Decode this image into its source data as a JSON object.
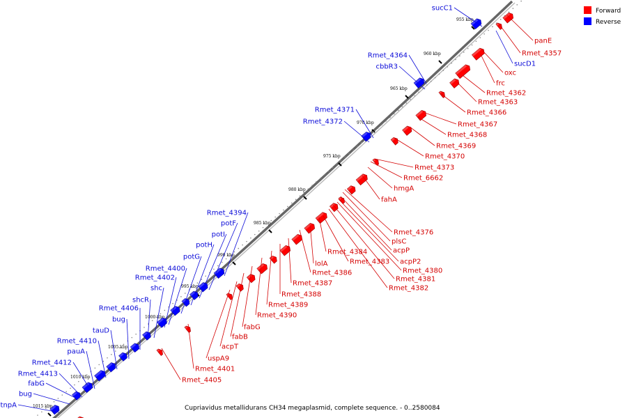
{
  "caption": "Cupriavidus metallidurans CH34 megaplasmid, complete sequence. - 0..2580084",
  "legend": [
    {
      "label": "Forward",
      "color": "#ff0000"
    },
    {
      "label": "Reverse",
      "color": "#0000ff"
    }
  ],
  "colors": {
    "forward": "#ff0000",
    "reverse": "#0000ff",
    "forward_label": "#d40000",
    "reverse_label": "#0a0ad8",
    "backbone": "#555555"
  },
  "ticks": [
    "955 kbp",
    "960 kbp",
    "965 kbp",
    "970 kbp",
    "975 kbp",
    "980 kbp",
    "985 kbp",
    "990 kbp",
    "995 kbp",
    "1000 kbp",
    "1005 kbp",
    "1010 kbp",
    "1015 kbp"
  ],
  "reverse_labels": [
    "sucC1",
    "sucD1",
    "Rmet_4364",
    "cbbR3",
    "Rmet_4371",
    "Rmet_4372",
    "Rmet_4394",
    "potF",
    "potI",
    "potH",
    "potG",
    "Rmet_4400",
    "Rmet_4402",
    "shc",
    "shcR",
    "Rmet_4406",
    "bug",
    "tauD",
    "Rmet_4410",
    "pauA",
    "Rmet_4412",
    "Rmet_4413",
    "fabG",
    "bug",
    "tnpA"
  ],
  "forward_labels": [
    "panE",
    "Rmet_4357",
    "oxc",
    "frc",
    "Rmet_4362",
    "Rmet_4363",
    "Rmet_4366",
    "Rmet_4367",
    "Rmet_4368",
    "Rmet_4369",
    "Rmet_4370",
    "Rmet_4373",
    "Rmet_6662",
    "hmgA",
    "fahA",
    "Rmet_4376",
    "plsC",
    "acpP",
    "acpP2",
    "Rmet_4380",
    "Rmet_4381",
    "Rmet_4382",
    "Rmet_4384",
    "Rmet_4383",
    "lolA",
    "Rmet_4386",
    "Rmet_4387",
    "Rmet_4388",
    "Rmet_4389",
    "Rmet_4390",
    "fabG",
    "fabB",
    "acpT",
    "uspA9",
    "Rmet_4401",
    "Rmet_4405"
  ]
}
